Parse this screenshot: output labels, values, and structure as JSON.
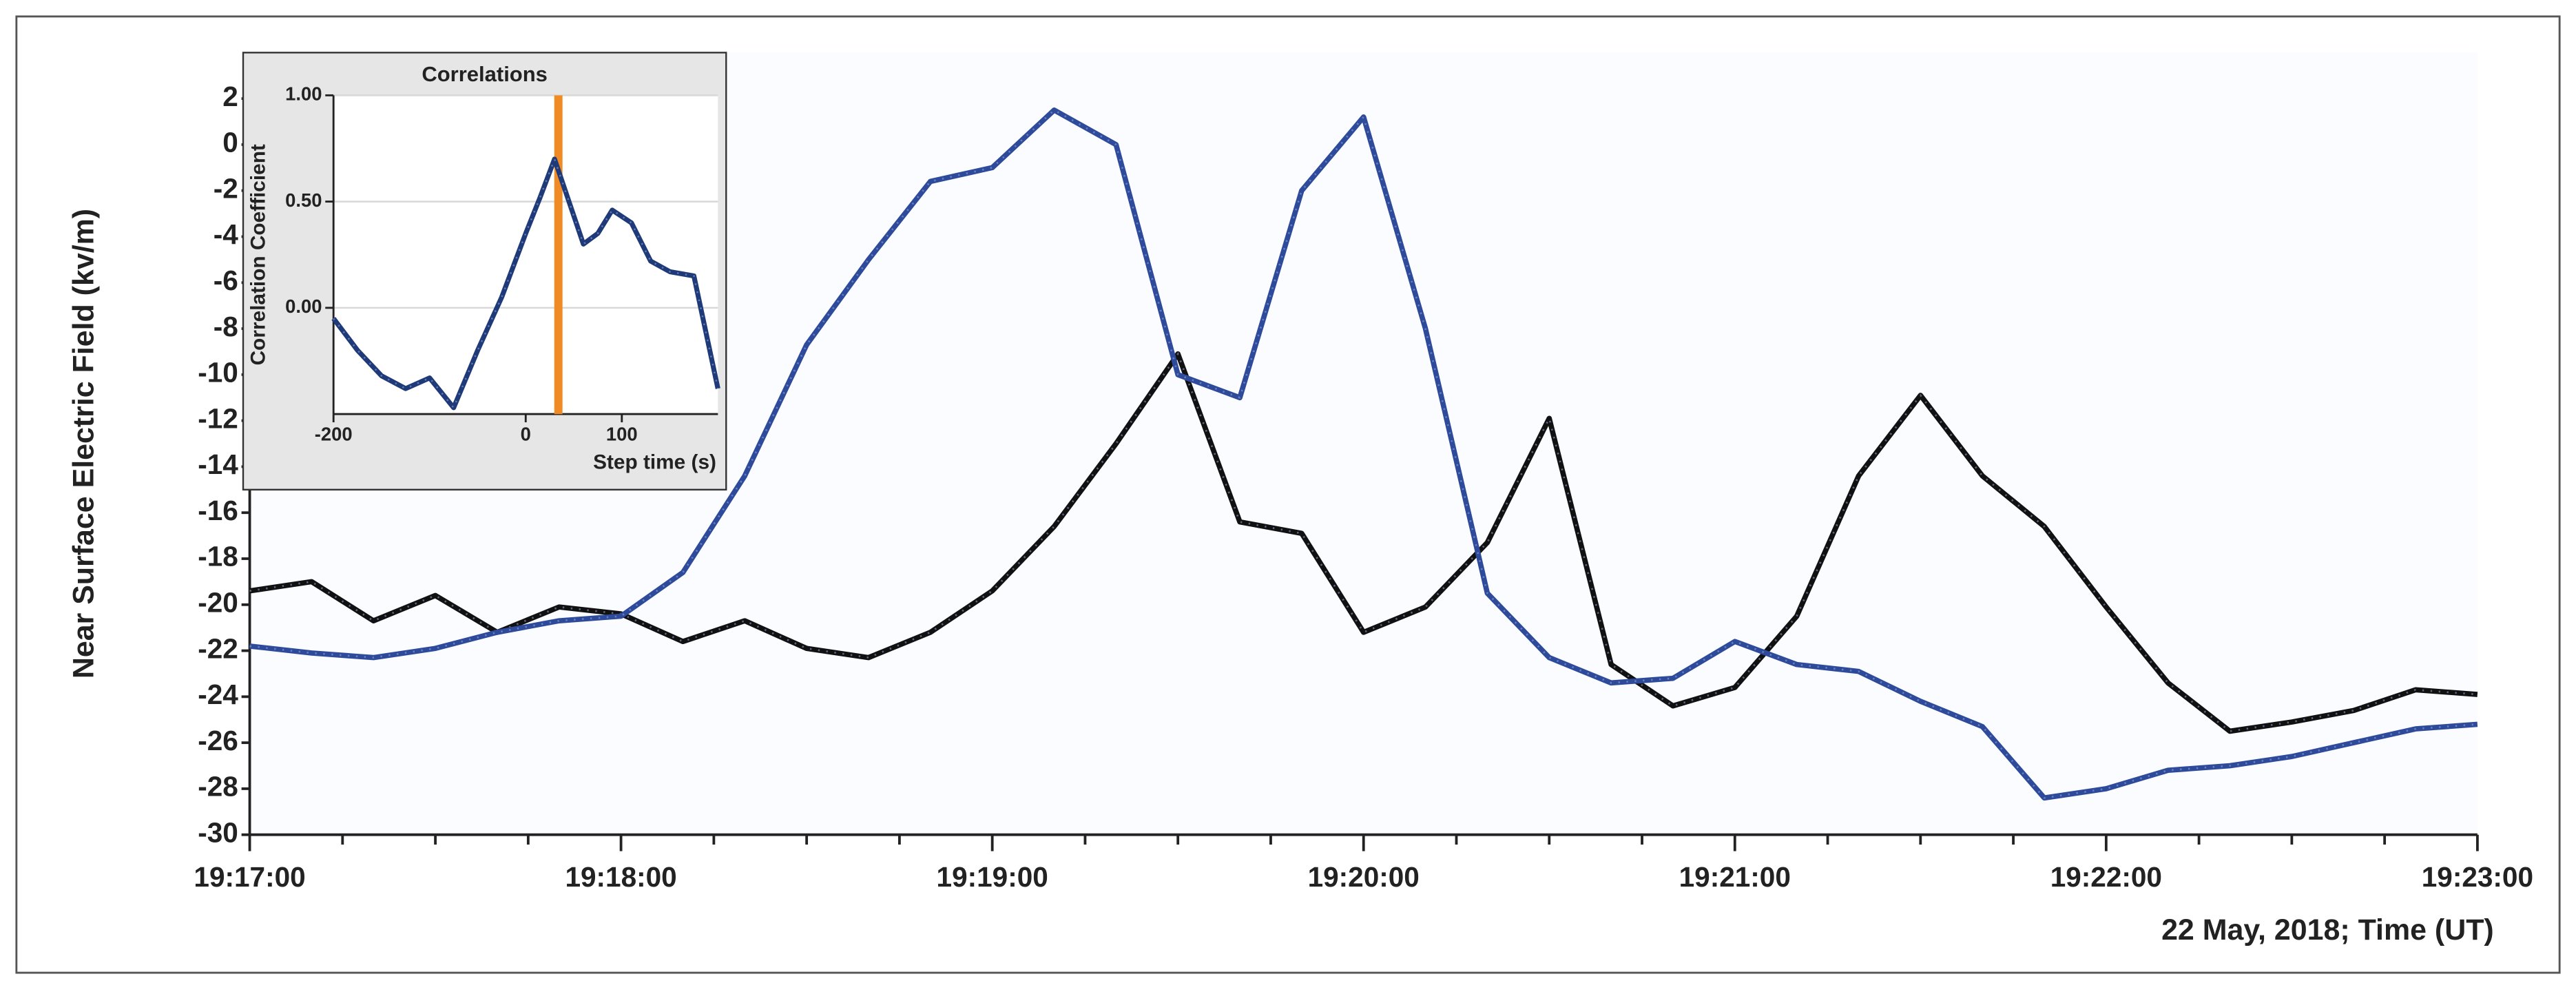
{
  "chart_data": [
    {
      "type": "line",
      "y_label": "Near Surface Electric Field (kv/m)",
      "x_label": "22 May, 2018; Time (UT)",
      "x": [
        "19:17:00",
        "19:17:10",
        "19:17:20",
        "19:17:30",
        "19:17:40",
        "19:17:50",
        "19:18:00",
        "19:18:10",
        "19:18:20",
        "19:18:30",
        "19:18:40",
        "19:18:50",
        "19:19:00",
        "19:19:10",
        "19:19:20",
        "19:19:30",
        "19:19:40",
        "19:19:50",
        "19:20:00",
        "19:20:10",
        "19:20:20",
        "19:20:30",
        "19:20:40",
        "19:20:50",
        "19:21:00",
        "19:21:10",
        "19:21:20",
        "19:21:30",
        "19:21:40",
        "19:21:50",
        "19:22:00",
        "19:22:10",
        "19:22:20",
        "19:22:30",
        "19:22:40",
        "19:22:50",
        "19:23:00"
      ],
      "series": [
        {
          "color": "#111111",
          "values": [
            -19.4,
            -19,
            -20.7,
            -19.6,
            -21.2,
            -20.1,
            -20.4,
            -21.6,
            -20.7,
            -21.9,
            -22.3,
            -21.2,
            -19.4,
            -16.6,
            -13,
            -9.1,
            -16.4,
            -16.9,
            -21.2,
            -20.1,
            -17.3,
            -11.9,
            -22.6,
            -24.4,
            -23.6,
            -20.5,
            -14.4,
            -10.9,
            -14.4,
            -16.6,
            -20.1,
            -23.4,
            -25.5,
            -25.1,
            -24.6,
            -23.7,
            -23.9
          ]
        },
        {
          "color": "#2e4a9a",
          "values": [
            -21.8,
            -22.1,
            -22.3,
            -21.9,
            -21.2,
            -20.7,
            -20.5,
            -18.6,
            -14.4,
            -8.7,
            -5,
            -1.6,
            -1,
            1.5,
            0,
            -10,
            -11,
            -2,
            1.2,
            -8,
            -19.5,
            -22.3,
            -23.4,
            -23.2,
            -21.6,
            -22.6,
            -22.9,
            -24.2,
            -25.3,
            -28.4,
            -28,
            -27.2,
            -27,
            -26.6,
            -26,
            -25.4,
            -25.2
          ]
        }
      ],
      "xlim": [
        "19:17:00",
        "19:23:00"
      ],
      "xticks": [
        "19:17:00",
        "19:18:00",
        "19:19:00",
        "19:20:00",
        "19:21:00",
        "19:22:00",
        "19:23:00"
      ],
      "xminorticks": [
        "19:17:15",
        "19:17:30",
        "19:17:45",
        "19:18:15",
        "19:18:30",
        "19:18:45",
        "19:19:15",
        "19:19:30",
        "19:19:45",
        "19:20:15",
        "19:20:30",
        "19:20:45",
        "19:21:15",
        "19:21:30",
        "19:21:45",
        "19:22:15",
        "19:22:30",
        "19:22:45"
      ],
      "ylim": [
        -30,
        4
      ],
      "yticks": [
        2,
        0,
        -2,
        -4,
        -6,
        -8,
        -10,
        -12,
        -14,
        -16,
        -18,
        -20,
        -22,
        -24,
        -26,
        -28,
        -30
      ],
      "grid": false
    },
    {
      "type": "line",
      "title": "Correlations",
      "y_label": "Correlation Coefficient",
      "x_label": "Step time (s)",
      "x": [
        -200,
        -175,
        -150,
        -125,
        -100,
        -75,
        -50,
        -25,
        0,
        15,
        30,
        45,
        60,
        75,
        90,
        110,
        130,
        150,
        175,
        200
      ],
      "series": [
        {
          "color": "#1f3a78",
          "values": [
            -0.05,
            -0.2,
            -0.32,
            -0.38,
            -0.33,
            -0.47,
            -0.2,
            0.05,
            0.35,
            0.52,
            0.7,
            0.5,
            0.3,
            0.35,
            0.46,
            0.4,
            0.22,
            0.17,
            0.15,
            -0.38
          ]
        }
      ],
      "xlim": [
        -200,
        200
      ],
      "xticks": [
        -200,
        0,
        100
      ],
      "ylim": [
        -0.5,
        1.0
      ],
      "yticks": [
        {
          "value": 0,
          "label": "0.00"
        },
        {
          "value": 0.5,
          "label": "0.50"
        },
        {
          "value": 1,
          "label": "1.00"
        }
      ],
      "grid": true,
      "marker_x": 34,
      "marker_color": "#f08a24"
    }
  ]
}
